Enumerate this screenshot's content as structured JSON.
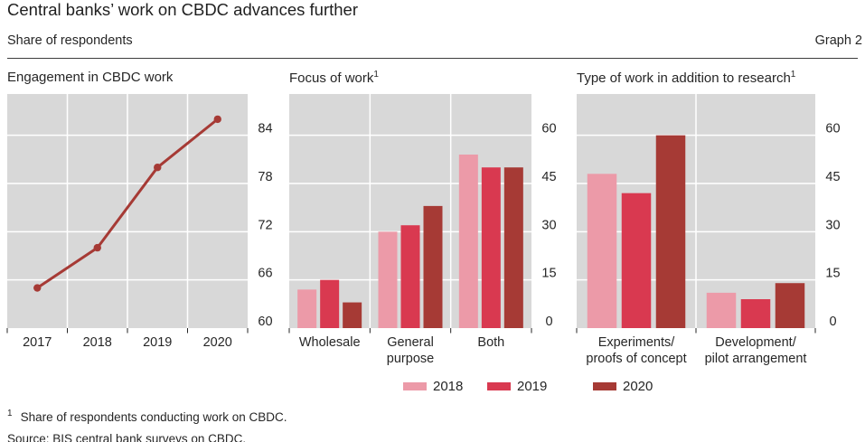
{
  "header": {
    "title": "Central banks’ work on CBDC advances further",
    "subtitle": "Share of respondents",
    "graph_label": "Graph 2"
  },
  "colors": {
    "plot_bg": "#d8d8d8",
    "grid": "#ffffff",
    "text": "#262626",
    "series_2018": "#ec9aa8",
    "series_2019": "#d93950",
    "series_2020": "#a63a35",
    "line": "#a63a35"
  },
  "legend": [
    {
      "label": "2018",
      "color": "#ec9aa8"
    },
    {
      "label": "2019",
      "color": "#d93950"
    },
    {
      "label": "2020",
      "color": "#a63a35"
    }
  ],
  "footnote": {
    "marker": "1",
    "text": "Share of respondents conducting work on CBDC."
  },
  "source_line": "Source: BIS central bank surveys on CBDC.",
  "chart_data": [
    {
      "type": "line",
      "title": "Engagement in CBDC work",
      "x": [
        "2017",
        "2018",
        "2019",
        "2020"
      ],
      "values": [
        65,
        70,
        80,
        86
      ],
      "color": "#a63a35",
      "ylim": [
        60,
        88
      ],
      "yticks": [
        60,
        66,
        72,
        78,
        84
      ],
      "ylabel": "",
      "xlabel": "",
      "grid": true,
      "axis_side": "right",
      "legend_position": "none"
    },
    {
      "type": "bar",
      "title": "Focus of work",
      "sup": "1",
      "categories": [
        "Wholesale",
        "General\npurpose",
        "Both"
      ],
      "series": [
        {
          "name": "2018",
          "values": [
            12,
            30,
            54
          ]
        },
        {
          "name": "2019",
          "values": [
            15,
            32,
            50
          ]
        },
        {
          "name": "2020",
          "values": [
            8,
            38,
            50
          ]
        }
      ],
      "ylim": [
        0,
        73
      ],
      "yticks": [
        0,
        15,
        30,
        45,
        60
      ],
      "ylabel": "",
      "xlabel": "",
      "grid": true,
      "axis_side": "right",
      "legend_position": "bottom"
    },
    {
      "type": "bar",
      "title": "Type of work in addition to research",
      "sup": "1",
      "categories": [
        "Experiments/\nproofs of concept",
        "Development/\npilot arrangement"
      ],
      "series": [
        {
          "name": "2018",
          "values": [
            48,
            11
          ]
        },
        {
          "name": "2019",
          "values": [
            42,
            9
          ]
        },
        {
          "name": "2020",
          "values": [
            60,
            14
          ]
        }
      ],
      "ylim": [
        0,
        73
      ],
      "yticks": [
        0,
        15,
        30,
        45,
        60
      ],
      "ylabel": "",
      "xlabel": "",
      "grid": true,
      "axis_side": "right",
      "legend_position": "bottom"
    }
  ]
}
